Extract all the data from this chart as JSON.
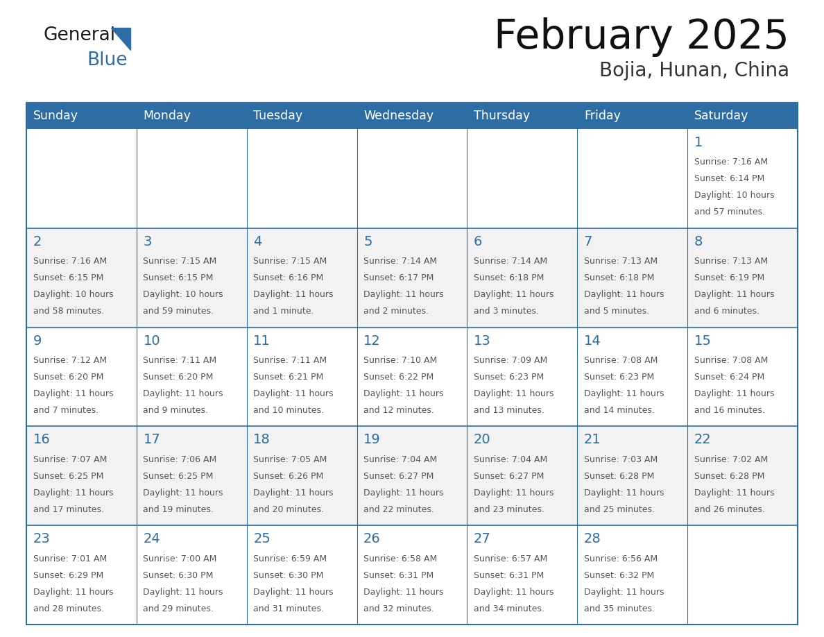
{
  "title": "February 2025",
  "subtitle": "Bojia, Hunan, China",
  "header_bg": "#2E6DA4",
  "header_text_color": "#FFFFFF",
  "cell_bg_white": "#FFFFFF",
  "cell_bg_gray": "#F2F2F2",
  "cell_border_color": "#2E6DA4",
  "day_number_color": "#2E6DA4",
  "detail_text_color": "#555555",
  "title_color": "#111111",
  "subtitle_color": "#333333",
  "days_of_week": [
    "Sunday",
    "Monday",
    "Tuesday",
    "Wednesday",
    "Thursday",
    "Friday",
    "Saturday"
  ],
  "calendar_data": [
    [
      null,
      null,
      null,
      null,
      null,
      null,
      {
        "day": "1",
        "sunrise": "7:16 AM",
        "sunset": "6:14 PM",
        "daylight_line1": "10 hours",
        "daylight_line2": "and 57 minutes."
      }
    ],
    [
      {
        "day": "2",
        "sunrise": "7:16 AM",
        "sunset": "6:15 PM",
        "daylight_line1": "10 hours",
        "daylight_line2": "and 58 minutes."
      },
      {
        "day": "3",
        "sunrise": "7:15 AM",
        "sunset": "6:15 PM",
        "daylight_line1": "10 hours",
        "daylight_line2": "and 59 minutes."
      },
      {
        "day": "4",
        "sunrise": "7:15 AM",
        "sunset": "6:16 PM",
        "daylight_line1": "11 hours",
        "daylight_line2": "and 1 minute."
      },
      {
        "day": "5",
        "sunrise": "7:14 AM",
        "sunset": "6:17 PM",
        "daylight_line1": "11 hours",
        "daylight_line2": "and 2 minutes."
      },
      {
        "day": "6",
        "sunrise": "7:14 AM",
        "sunset": "6:18 PM",
        "daylight_line1": "11 hours",
        "daylight_line2": "and 3 minutes."
      },
      {
        "day": "7",
        "sunrise": "7:13 AM",
        "sunset": "6:18 PM",
        "daylight_line1": "11 hours",
        "daylight_line2": "and 5 minutes."
      },
      {
        "day": "8",
        "sunrise": "7:13 AM",
        "sunset": "6:19 PM",
        "daylight_line1": "11 hours",
        "daylight_line2": "and 6 minutes."
      }
    ],
    [
      {
        "day": "9",
        "sunrise": "7:12 AM",
        "sunset": "6:20 PM",
        "daylight_line1": "11 hours",
        "daylight_line2": "and 7 minutes."
      },
      {
        "day": "10",
        "sunrise": "7:11 AM",
        "sunset": "6:20 PM",
        "daylight_line1": "11 hours",
        "daylight_line2": "and 9 minutes."
      },
      {
        "day": "11",
        "sunrise": "7:11 AM",
        "sunset": "6:21 PM",
        "daylight_line1": "11 hours",
        "daylight_line2": "and 10 minutes."
      },
      {
        "day": "12",
        "sunrise": "7:10 AM",
        "sunset": "6:22 PM",
        "daylight_line1": "11 hours",
        "daylight_line2": "and 12 minutes."
      },
      {
        "day": "13",
        "sunrise": "7:09 AM",
        "sunset": "6:23 PM",
        "daylight_line1": "11 hours",
        "daylight_line2": "and 13 minutes."
      },
      {
        "day": "14",
        "sunrise": "7:08 AM",
        "sunset": "6:23 PM",
        "daylight_line1": "11 hours",
        "daylight_line2": "and 14 minutes."
      },
      {
        "day": "15",
        "sunrise": "7:08 AM",
        "sunset": "6:24 PM",
        "daylight_line1": "11 hours",
        "daylight_line2": "and 16 minutes."
      }
    ],
    [
      {
        "day": "16",
        "sunrise": "7:07 AM",
        "sunset": "6:25 PM",
        "daylight_line1": "11 hours",
        "daylight_line2": "and 17 minutes."
      },
      {
        "day": "17",
        "sunrise": "7:06 AM",
        "sunset": "6:25 PM",
        "daylight_line1": "11 hours",
        "daylight_line2": "and 19 minutes."
      },
      {
        "day": "18",
        "sunrise": "7:05 AM",
        "sunset": "6:26 PM",
        "daylight_line1": "11 hours",
        "daylight_line2": "and 20 minutes."
      },
      {
        "day": "19",
        "sunrise": "7:04 AM",
        "sunset": "6:27 PM",
        "daylight_line1": "11 hours",
        "daylight_line2": "and 22 minutes."
      },
      {
        "day": "20",
        "sunrise": "7:04 AM",
        "sunset": "6:27 PM",
        "daylight_line1": "11 hours",
        "daylight_line2": "and 23 minutes."
      },
      {
        "day": "21",
        "sunrise": "7:03 AM",
        "sunset": "6:28 PM",
        "daylight_line1": "11 hours",
        "daylight_line2": "and 25 minutes."
      },
      {
        "day": "22",
        "sunrise": "7:02 AM",
        "sunset": "6:28 PM",
        "daylight_line1": "11 hours",
        "daylight_line2": "and 26 minutes."
      }
    ],
    [
      {
        "day": "23",
        "sunrise": "7:01 AM",
        "sunset": "6:29 PM",
        "daylight_line1": "11 hours",
        "daylight_line2": "and 28 minutes."
      },
      {
        "day": "24",
        "sunrise": "7:00 AM",
        "sunset": "6:30 PM",
        "daylight_line1": "11 hours",
        "daylight_line2": "and 29 minutes."
      },
      {
        "day": "25",
        "sunrise": "6:59 AM",
        "sunset": "6:30 PM",
        "daylight_line1": "11 hours",
        "daylight_line2": "and 31 minutes."
      },
      {
        "day": "26",
        "sunrise": "6:58 AM",
        "sunset": "6:31 PM",
        "daylight_line1": "11 hours",
        "daylight_line2": "and 32 minutes."
      },
      {
        "day": "27",
        "sunrise": "6:57 AM",
        "sunset": "6:31 PM",
        "daylight_line1": "11 hours",
        "daylight_line2": "and 34 minutes."
      },
      {
        "day": "28",
        "sunrise": "6:56 AM",
        "sunset": "6:32 PM",
        "daylight_line1": "11 hours",
        "daylight_line2": "and 35 minutes."
      },
      null
    ]
  ]
}
